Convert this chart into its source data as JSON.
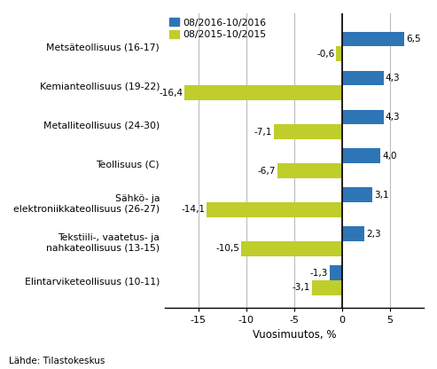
{
  "categories": [
    "Metsäteollisuus (16-17)",
    "Kemianteollisuus (19-22)",
    "Metalliteollisuus (24-30)",
    "Teollisuus (C)",
    "Sähkö- ja\nelektroniikkateollisuus (26-27)",
    "Tekstiili-, vaatetus- ja\nnahkateollisuus (13-15)",
    "Elintarviketeollisuus (10-11)"
  ],
  "series1_values": [
    6.5,
    4.3,
    4.3,
    4.0,
    3.1,
    2.3,
    -1.3
  ],
  "series2_values": [
    -0.6,
    -16.4,
    -7.1,
    -6.7,
    -14.1,
    -10.5,
    -3.1
  ],
  "series1_color": "#2E75B6",
  "series2_color": "#BFCE2B",
  "series1_label": "08/2016-10/2016",
  "series2_label": "08/2015-10/2015",
  "xlabel": "Vuosimuutos, %",
  "xlim": [
    -18.5,
    8.5
  ],
  "xticks": [
    -15,
    -10,
    -5,
    0,
    5
  ],
  "footer": "Lähde: Tilastokeskus",
  "bar_height": 0.38,
  "background_color": "#ffffff",
  "grid_color": "#bbbbbb"
}
